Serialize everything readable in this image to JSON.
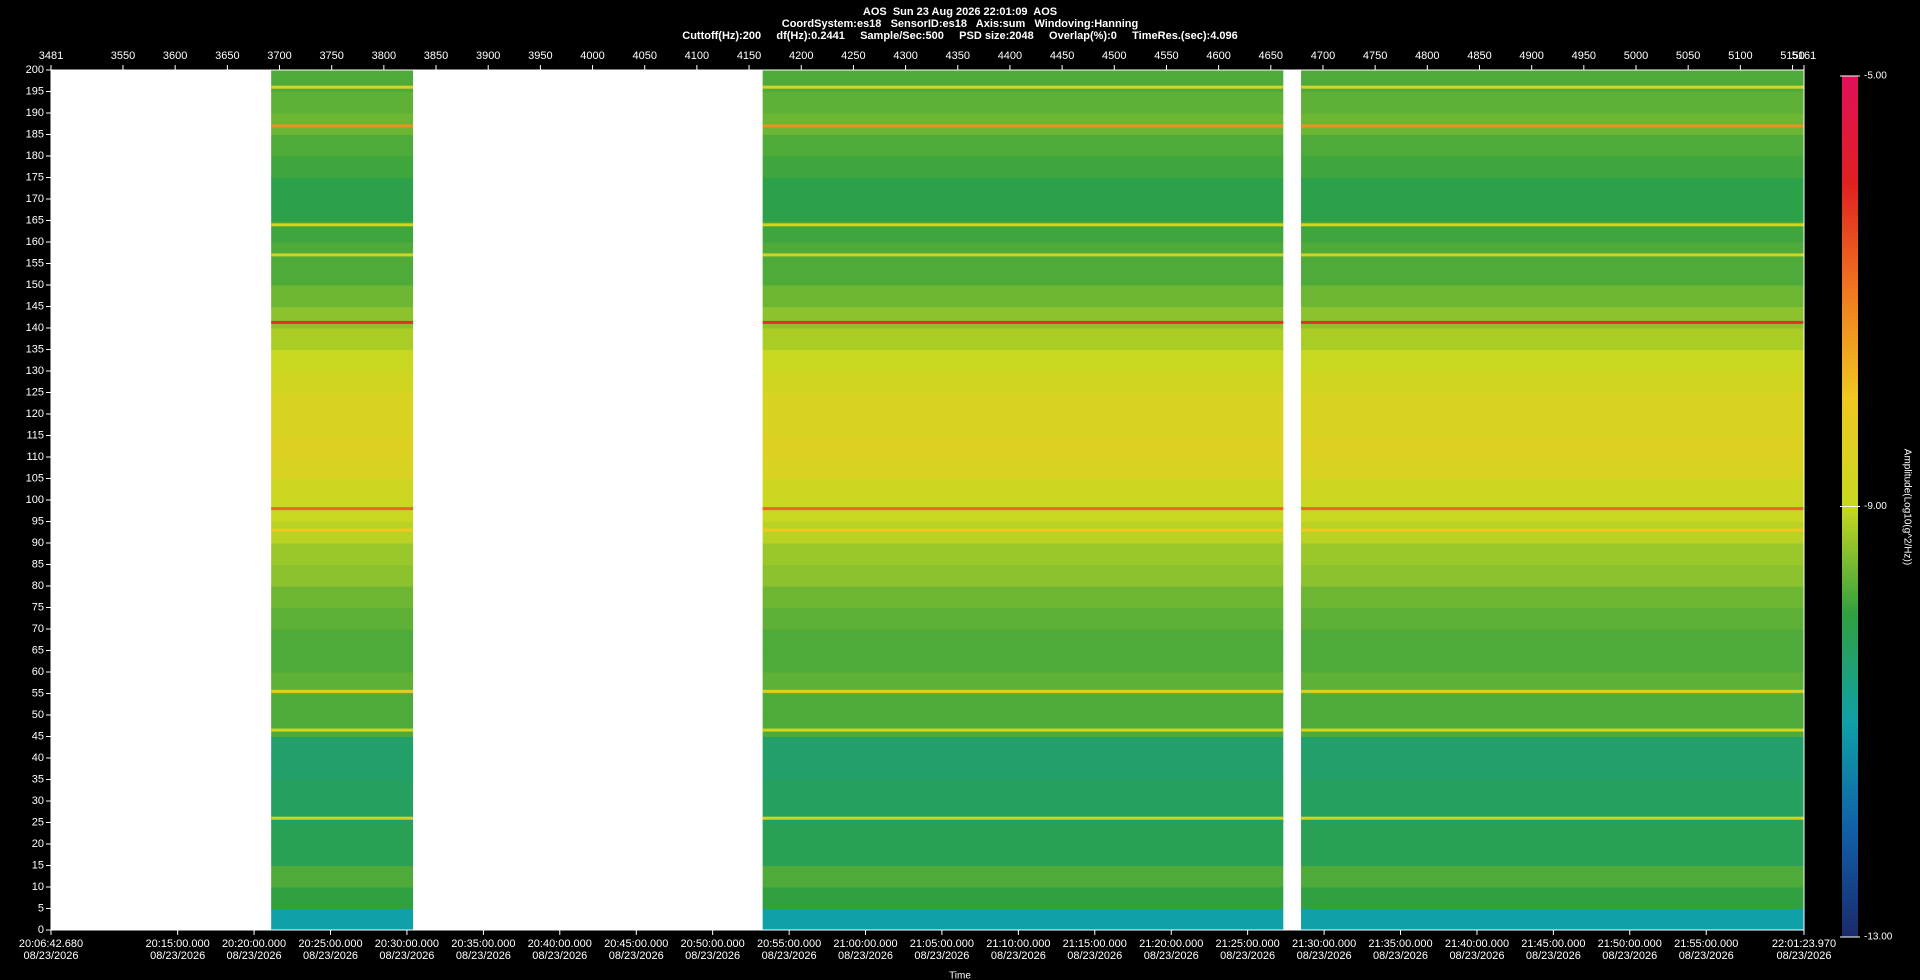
{
  "chart_data": {
    "type": "spectrogram",
    "title_lines": [
      "AOS  Sun 23 Aug 2026 22:01:09  AOS",
      "CoordSystem:es18   SensorID:es18   Axis:sum   Windoving:Hanning",
      "Cuttoff(Hz):200     df(Hz):0.2441     Sample/Sec:500     PSD size:2048     Overlap(%):0     TimeRes.(sec):4.096"
    ],
    "xlabel": "Time",
    "colorbar_label": "Amplitude(Log10(g^2/Hz))",
    "xlim": [
      3481,
      5161
    ],
    "xticks": [
      3481,
      3550,
      3600,
      3650,
      3700,
      3750,
      3800,
      3850,
      3900,
      3950,
      4000,
      4050,
      4100,
      4150,
      4200,
      4250,
      4300,
      4350,
      4400,
      4450,
      4500,
      4550,
      4600,
      4650,
      4700,
      4750,
      4800,
      4850,
      4900,
      4950,
      5000,
      5050,
      5100,
      5150,
      5161
    ],
    "time_ticks": [
      {
        "value": 3481,
        "label": "20:06:42.680",
        "date": "08/23/2026"
      },
      {
        "value": 3602.4,
        "label": "20:15:00.000",
        "date": "08/23/2026"
      },
      {
        "value": 3675.6,
        "label": "20:20:00.000",
        "date": "08/23/2026"
      },
      {
        "value": 3748.9,
        "label": "20:25:00.000",
        "date": "08/23/2026"
      },
      {
        "value": 3822.1,
        "label": "20:30:00.000",
        "date": "08/23/2026"
      },
      {
        "value": 3895.4,
        "label": "20:35:00.000",
        "date": "08/23/2026"
      },
      {
        "value": 3968.6,
        "label": "20:40:00.000",
        "date": "08/23/2026"
      },
      {
        "value": 4041.9,
        "label": "20:45:00.000",
        "date": "08/23/2026"
      },
      {
        "value": 4115.1,
        "label": "20:50:00.000",
        "date": "08/23/2026"
      },
      {
        "value": 4188.4,
        "label": "20:55:00.000",
        "date": "08/23/2026"
      },
      {
        "value": 4261.6,
        "label": "21:00:00.000",
        "date": "08/23/2026"
      },
      {
        "value": 4334.8,
        "label": "21:05:00.000",
        "date": "08/23/2026"
      },
      {
        "value": 4408.1,
        "label": "21:10:00.000",
        "date": "08/23/2026"
      },
      {
        "value": 4481.3,
        "label": "21:15:00.000",
        "date": "08/23/2026"
      },
      {
        "value": 4554.6,
        "label": "21:20:00.000",
        "date": "08/23/2026"
      },
      {
        "value": 4627.8,
        "label": "21:25:00.000",
        "date": "08/23/2026"
      },
      {
        "value": 4701.1,
        "label": "21:30:00.000",
        "date": "08/23/2026"
      },
      {
        "value": 4774.3,
        "label": "21:35:00.000",
        "date": "08/23/2026"
      },
      {
        "value": 4847.6,
        "label": "21:40:00.000",
        "date": "08/23/2026"
      },
      {
        "value": 4920.8,
        "label": "21:45:00.000",
        "date": "08/23/2026"
      },
      {
        "value": 4994.0,
        "label": "21:50:00.000",
        "date": "08/23/2026"
      },
      {
        "value": 5067.3,
        "label": "21:55:00.000",
        "date": "08/23/2026"
      },
      {
        "value": 5161,
        "label": "22:01:23.970",
        "date": "08/23/2026"
      }
    ],
    "ylim": [
      0,
      200
    ],
    "yticks": [
      0,
      5,
      10,
      15,
      20,
      25,
      30,
      35,
      40,
      45,
      50,
      55,
      60,
      65,
      70,
      75,
      80,
      85,
      90,
      95,
      100,
      105,
      110,
      115,
      120,
      125,
      130,
      135,
      140,
      145,
      150,
      155,
      160,
      165,
      170,
      175,
      180,
      185,
      190,
      195,
      200
    ],
    "clim": [
      -13,
      -5
    ],
    "cticks": [
      {
        "value": -13,
        "label": "-13.00"
      },
      {
        "value": -9,
        "label": "-9.00"
      },
      {
        "value": -5,
        "label": "-5.00"
      }
    ],
    "colormap": [
      "#1a2a6c",
      "#1060a8",
      "#10a0a8",
      "#30a040",
      "#c8d820",
      "#f0c820",
      "#f07820",
      "#e02020",
      "#e0105a"
    ],
    "segments": [
      [
        3692,
        3828
      ],
      [
        4163,
        4662
      ],
      [
        4679,
        5161
      ]
    ],
    "band_edges": [
      0,
      5,
      10,
      15,
      20,
      25,
      30,
      35,
      40,
      45,
      50,
      55,
      60,
      65,
      70,
      75,
      80,
      85,
      90,
      95,
      100,
      105,
      110,
      115,
      120,
      125,
      130,
      135,
      140,
      145,
      150,
      155,
      160,
      165,
      170,
      175,
      180,
      185,
      190,
      195,
      200
    ],
    "band_values": [
      -11,
      -10,
      -9.8,
      -10.2,
      -10.2,
      -10.3,
      -10.3,
      -10.4,
      -10.4,
      -9.8,
      -9.8,
      -9.7,
      -9.8,
      -9.8,
      -9.7,
      -9.6,
      -9.4,
      -9.3,
      -9.1,
      -9.0,
      -8.9,
      -8.6,
      -8.5,
      -8.6,
      -8.6,
      -8.8,
      -9.0,
      -9.2,
      -9.4,
      -9.6,
      -9.8,
      -9.8,
      -9.9,
      -10.1,
      -10.1,
      -9.9,
      -9.8,
      -9.6,
      -9.7,
      -9.8
    ],
    "lines": [
      {
        "freq": 141.3,
        "value": -6.2
      },
      {
        "freq": 98,
        "value": -6.8
      },
      {
        "freq": 187,
        "value": -7.3
      },
      {
        "freq": 196,
        "value": -8.5
      },
      {
        "freq": 93,
        "value": -8.0
      },
      {
        "freq": 55.5,
        "value": -8.5
      },
      {
        "freq": 46.5,
        "value": -8.8
      },
      {
        "freq": 26,
        "value": -8.8
      },
      {
        "freq": 157,
        "value": -8.7
      },
      {
        "freq": 164,
        "value": -8.8
      }
    ]
  }
}
